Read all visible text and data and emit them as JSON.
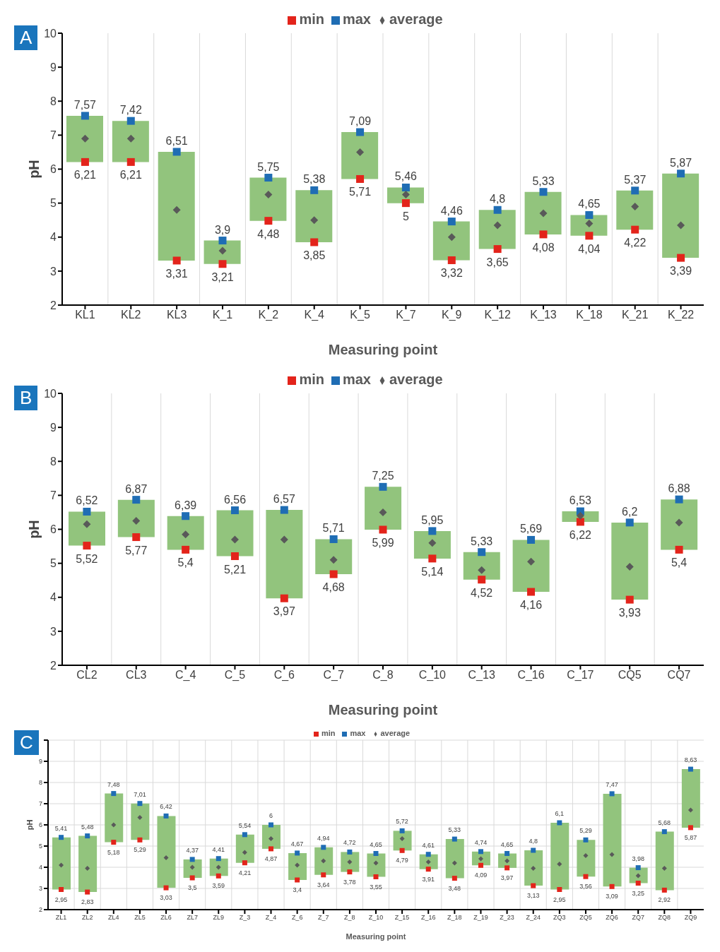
{
  "chart_data": [
    {
      "type": "bar",
      "xlabel": "Measuring point",
      "ylabel": "pH",
      "annotations": [
        "A"
      ],
      "legend": "top",
      "grid": "x",
      "ylim": [
        2,
        10
      ],
      "yticks": [
        2,
        3,
        4,
        5,
        6,
        7,
        8,
        9,
        10
      ],
      "categories": [
        "KL1",
        "KL2",
        "KL3",
        "K_1",
        "K_2",
        "K_4",
        "K_5",
        "K_7",
        "K_9",
        "K_12",
        "K_13",
        "K_18",
        "K_21",
        "K_22"
      ],
      "series": [
        {
          "color": "#92c47d",
          "base": [
            6.21,
            6.21,
            3.31,
            3.21,
            4.48,
            3.85,
            5.71,
            5,
            3.32,
            3.65,
            4.08,
            4.04,
            4.22,
            3.39
          ],
          "values": [
            1.36,
            1.21,
            3.2,
            0.69,
            1.27,
            1.53,
            1.38,
            0.46,
            1.14,
            1.15,
            1.25,
            0.61,
            1.15,
            2.48
          ]
        },
        {
          "type": "scatter",
          "name": "min",
          "color": "#e3241b",
          "marker": "square",
          "values": [
            6.21,
            6.21,
            3.31,
            3.21,
            4.48,
            3.85,
            5.71,
            5,
            3.32,
            3.65,
            4.08,
            4.04,
            4.22,
            3.39
          ],
          "value_labels": [
            "6,21",
            "6,21",
            "3,31",
            "3,21",
            "4,48",
            "3,85",
            "5,71",
            "5",
            "3,32",
            "3,65",
            "4,08",
            "4,04",
            "4,22",
            "3,39"
          ]
        },
        {
          "type": "scatter",
          "name": "max",
          "color": "#1f6db4",
          "marker": "square",
          "values": [
            7.57,
            7.42,
            6.51,
            3.9,
            5.75,
            5.38,
            7.09,
            5.46,
            4.46,
            4.8,
            5.33,
            4.65,
            5.37,
            5.87
          ],
          "value_labels": [
            "7,57",
            "7,42",
            "6,51",
            "3,9",
            "5,75",
            "5,38",
            "7,09",
            "5,46",
            "4,46",
            "4,8",
            "5,33",
            "4,65",
            "5,37",
            "5,87"
          ]
        },
        {
          "type": "scatter",
          "name": "average",
          "color": "#595959",
          "marker": "diamond",
          "values": [
            6.9,
            6.9,
            4.8,
            3.6,
            5.25,
            4.5,
            6.5,
            5.25,
            4.0,
            4.35,
            4.7,
            4.4,
            4.9,
            4.35
          ]
        }
      ]
    },
    {
      "type": "bar",
      "xlabel": "Measuring point",
      "ylabel": "pH",
      "annotations": [
        "B"
      ],
      "legend": "top",
      "grid": "x",
      "ylim": [
        2,
        10
      ],
      "yticks": [
        2,
        3,
        4,
        5,
        6,
        7,
        8,
        9,
        10
      ],
      "categories": [
        "CL2",
        "CL3",
        "C_4",
        "C_5",
        "C_6",
        "C_7",
        "C_8",
        "C_10",
        "C_13",
        "C_16",
        "C_17",
        "CQ5",
        "CQ7"
      ],
      "series": [
        {
          "color": "#92c47d",
          "base": [
            5.52,
            5.77,
            5.4,
            5.21,
            3.97,
            4.68,
            5.99,
            5.14,
            4.52,
            4.16,
            6.22,
            3.93,
            5.4
          ],
          "values": [
            1,
            1.1,
            0.99,
            1.35,
            2.6,
            1.03,
            1.26,
            0.81,
            0.81,
            1.53,
            0.31,
            2.27,
            1.48
          ]
        },
        {
          "type": "scatter",
          "name": "min",
          "color": "#e3241b",
          "marker": "square",
          "values": [
            5.52,
            5.77,
            5.4,
            5.21,
            3.97,
            4.68,
            5.99,
            5.14,
            4.52,
            4.16,
            6.22,
            3.93,
            5.4
          ],
          "value_labels": [
            "5,52",
            "5,77",
            "5,4",
            "5,21",
            "3,97",
            "4,68",
            "5,99",
            "5,14",
            "4,52",
            "4,16",
            "6,22",
            "3,93",
            "5,4"
          ]
        },
        {
          "type": "scatter",
          "name": "max",
          "color": "#1f6db4",
          "marker": "square",
          "values": [
            6.52,
            6.87,
            6.39,
            6.56,
            6.57,
            5.71,
            7.25,
            5.95,
            5.33,
            5.69,
            6.53,
            6.2,
            6.88
          ],
          "value_labels": [
            "6,52",
            "6,87",
            "6,39",
            "6,56",
            "6,57",
            "5,71",
            "7,25",
            "5,95",
            "5,33",
            "5,69",
            "6,53",
            "6,2",
            "6,88"
          ]
        },
        {
          "type": "scatter",
          "name": "average",
          "color": "#595959",
          "marker": "diamond",
          "values": [
            6.15,
            6.25,
            5.85,
            5.7,
            5.7,
            5.1,
            6.5,
            5.6,
            4.8,
            5.05,
            6.4,
            4.9,
            6.2
          ]
        }
      ]
    },
    {
      "type": "bar",
      "xlabel": "Measuring point",
      "ylabel": "pH",
      "annotations": [
        "C"
      ],
      "legend": "top",
      "grid": true,
      "ylim": [
        2,
        10
      ],
      "yticks": [
        2,
        3,
        4,
        5,
        6,
        7,
        8,
        9,
        {
          "value": 10,
          "label": null
        }
      ],
      "categories": [
        "ZL1",
        "ZL2",
        "ZL4",
        "ZL5",
        "ZL6",
        "ZL7",
        "ZL9",
        "Z_3",
        "Z_4",
        "Z_6",
        "Z_7",
        "Z_8",
        "Z_10",
        "Z_15",
        "Z_16",
        "Z_18",
        "Z_19",
        "Z_23",
        "Z_24",
        "ZQ3",
        "ZQ5",
        "ZQ6",
        "ZQ7",
        "ZQ8",
        "ZQ9"
      ],
      "series": [
        {
          "color": "#92c47d",
          "base": [
            2.95,
            2.83,
            5.18,
            5.29,
            3.03,
            3.5,
            3.59,
            4.21,
            4.87,
            3.4,
            3.64,
            3.78,
            3.55,
            4.79,
            3.91,
            3.48,
            4.09,
            3.97,
            3.13,
            2.95,
            3.56,
            3.09,
            3.25,
            2.92,
            5.87
          ],
          "values": [
            2.46,
            2.65,
            2.3,
            1.72,
            3.39,
            0.87,
            0.82,
            1.33,
            1.13,
            1.27,
            1.3,
            0.94,
            1.1,
            0.93,
            0.7,
            1.85,
            0.65,
            0.68,
            1.67,
            3.15,
            1.73,
            4.38,
            0.73,
            2.76,
            2.76
          ]
        },
        {
          "type": "scatter",
          "name": "min",
          "color": "#e3241b",
          "marker": "square",
          "values": [
            2.95,
            2.83,
            5.18,
            5.29,
            3.03,
            3.5,
            3.59,
            4.21,
            4.87,
            3.4,
            3.64,
            3.78,
            3.55,
            4.79,
            3.91,
            3.48,
            4.09,
            3.97,
            3.13,
            2.95,
            3.56,
            3.09,
            3.25,
            2.92,
            5.87
          ],
          "value_labels": [
            "2,95",
            "2,83",
            "5,18",
            "5,29",
            "3,03",
            "3,5",
            "3,59",
            "4,21",
            "4,87",
            "3,4",
            "3,64",
            "3,78",
            "3,55",
            "4,79",
            "3,91",
            "3,48",
            "4,09",
            "3,97",
            "3,13",
            "2,95",
            "3,56",
            "3,09",
            "3,25",
            "2,92",
            "5,87"
          ]
        },
        {
          "type": "scatter",
          "name": "max",
          "color": "#1f6db4",
          "marker": "square",
          "values": [
            5.41,
            5.48,
            7.48,
            7.01,
            6.42,
            4.37,
            4.41,
            5.54,
            6,
            4.67,
            4.94,
            4.72,
            4.65,
            5.72,
            4.61,
            5.33,
            4.74,
            4.65,
            4.8,
            6.1,
            5.29,
            7.47,
            3.98,
            5.68,
            8.63
          ],
          "value_labels": [
            "5,41",
            "5,48",
            "7,48",
            "7,01",
            "6,42",
            "4,37",
            "4,41",
            "5,54",
            "6",
            "4,67",
            "4,94",
            "4,72",
            "4,65",
            "5,72",
            "4,61",
            "5,33",
            "4,74",
            "4,65",
            "4,8",
            "6,1",
            "5,29",
            "7,47",
            "3,98",
            "5,68",
            "8,63"
          ]
        },
        {
          "type": "scatter",
          "name": "average",
          "color": "#595959",
          "marker": "diamond",
          "values": [
            4.1,
            3.95,
            6.0,
            6.35,
            4.45,
            4.0,
            4.0,
            4.7,
            5.35,
            4.1,
            4.3,
            4.25,
            4.2,
            5.35,
            4.25,
            4.2,
            4.4,
            4.3,
            3.95,
            4.15,
            4.55,
            4.6,
            3.6,
            3.95,
            6.7
          ]
        }
      ]
    }
  ]
}
